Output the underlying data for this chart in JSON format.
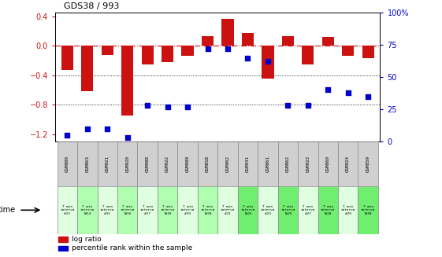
{
  "title": "GDS38 / 993",
  "samples": [
    "GSM980",
    "GSM863",
    "GSM921",
    "GSM920",
    "GSM988",
    "GSM922",
    "GSM989",
    "GSM858",
    "GSM902",
    "GSM931",
    "GSM861",
    "GSM862",
    "GSM923",
    "GSM860",
    "GSM924",
    "GSM859"
  ],
  "log_ratio": [
    -0.33,
    -0.62,
    -0.12,
    -0.95,
    -0.25,
    -0.22,
    -0.13,
    0.13,
    0.37,
    0.18,
    -0.44,
    0.13,
    -0.25,
    0.12,
    -0.14,
    -0.17
  ],
  "percentile": [
    5,
    10,
    10,
    3,
    28,
    27,
    27,
    72,
    72,
    65,
    62,
    28,
    28,
    40,
    38,
    35
  ],
  "time_labels": [
    "7 min\ninterva\n#13",
    "7 min\ninterva\nl#14",
    "7 min\ninterva\n#15",
    "7 min\ninterva\nl#16",
    "7 min\ninterva\n#17",
    "7 min\ninterva\nl#18",
    "7 min\ninterva\n#19",
    "7 min\ninterva\nl#20",
    "7 min\ninterva\n#21",
    "7 min\ninterva\nl#22",
    "7 min\ninterva\n#23",
    "7 min\ninterva\nl#25",
    "7 min\ninterva\n#27",
    "7 min\ninterva\nl#28",
    "7 min\ninterva\n#29",
    "7 min\ninterva\nl#30"
  ],
  "ylim_left": [
    -1.3,
    0.45
  ],
  "ylim_right": [
    0,
    100
  ],
  "yticks_left": [
    -1.2,
    -0.8,
    -0.4,
    0,
    0.4
  ],
  "yticks_right": [
    0,
    25,
    50,
    75,
    100
  ],
  "bar_color": "#cc1111",
  "dot_color": "#0000cc",
  "bg_color": "#ffffff",
  "plot_bg": "#ffffff",
  "hline_color": "#cc1111",
  "grid_color": "#000000",
  "header_bg": "#d0d0d0",
  "time_bg_light": "#e0ffe0",
  "time_bg_dark": "#b0ffb0",
  "time_bg_green": "#70ee70",
  "legend_red": "#cc1111",
  "legend_blue": "#0000cc",
  "time_cell_colors": [
    0,
    1,
    0,
    1,
    0,
    1,
    0,
    1,
    0,
    2,
    0,
    2,
    0,
    2,
    0,
    2
  ]
}
